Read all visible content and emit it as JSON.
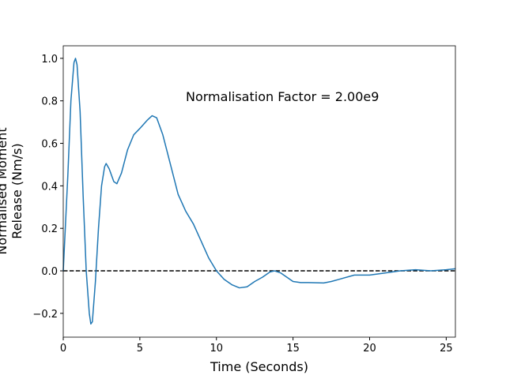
{
  "chart_data": {
    "type": "line",
    "xlabel": "Time (Seconds)",
    "ylabel": [
      "Normalised Moment",
      "Release (Nm/s)"
    ],
    "annotation": "Normalisation Factor = 2.00e9",
    "xlim": [
      0,
      25.6
    ],
    "ylim": [
      -0.312,
      1.059
    ],
    "xticks": [
      0,
      5,
      10,
      15,
      20,
      25
    ],
    "yticks": [
      {
        "value": -0.2,
        "label": "−0.2"
      },
      {
        "value": 0,
        "label": "0.0"
      },
      0.2,
      0.4,
      0.6,
      0.8,
      {
        "value": 1,
        "label": "1.0"
      }
    ],
    "reference_line": 0,
    "x": [
      0,
      0.3,
      0.5,
      0.7,
      0.8,
      0.9,
      1.1,
      1.3,
      1.5,
      1.7,
      1.8,
      1.9,
      2.1,
      2.3,
      2.5,
      2.7,
      2.8,
      3.0,
      3.3,
      3.5,
      3.8,
      4.2,
      4.6,
      5.0,
      5.5,
      5.8,
      6.1,
      6.5,
      7.0,
      7.5,
      8.0,
      8.5,
      9.0,
      9.5,
      10.0,
      10.5,
      11.0,
      11.5,
      12.0,
      12.5,
      13.0,
      13.5,
      13.8,
      14.2,
      14.6,
      15.0,
      15.5,
      16.0,
      17.0,
      17.5,
      18.0,
      19.0,
      20.0,
      21.0,
      22.0,
      23.0,
      24.0,
      25.0,
      25.6
    ],
    "series": [
      {
        "color": "#1f77b4",
        "values": [
          0,
          0.45,
          0.8,
          0.98,
          1.0,
          0.97,
          0.75,
          0.35,
          0.0,
          -0.2,
          -0.25,
          -0.24,
          -0.05,
          0.2,
          0.4,
          0.49,
          0.505,
          0.48,
          0.42,
          0.41,
          0.46,
          0.57,
          0.64,
          0.67,
          0.71,
          0.73,
          0.72,
          0.64,
          0.5,
          0.36,
          0.28,
          0.22,
          0.14,
          0.06,
          0.0,
          -0.04,
          -0.065,
          -0.08,
          -0.075,
          -0.05,
          -0.03,
          -0.005,
          0.0,
          -0.01,
          -0.03,
          -0.05,
          -0.055,
          -0.055,
          -0.057,
          -0.05,
          -0.04,
          -0.02,
          -0.02,
          -0.01,
          0.0,
          0.005,
          0.0,
          0.005,
          0.01
        ]
      }
    ]
  }
}
